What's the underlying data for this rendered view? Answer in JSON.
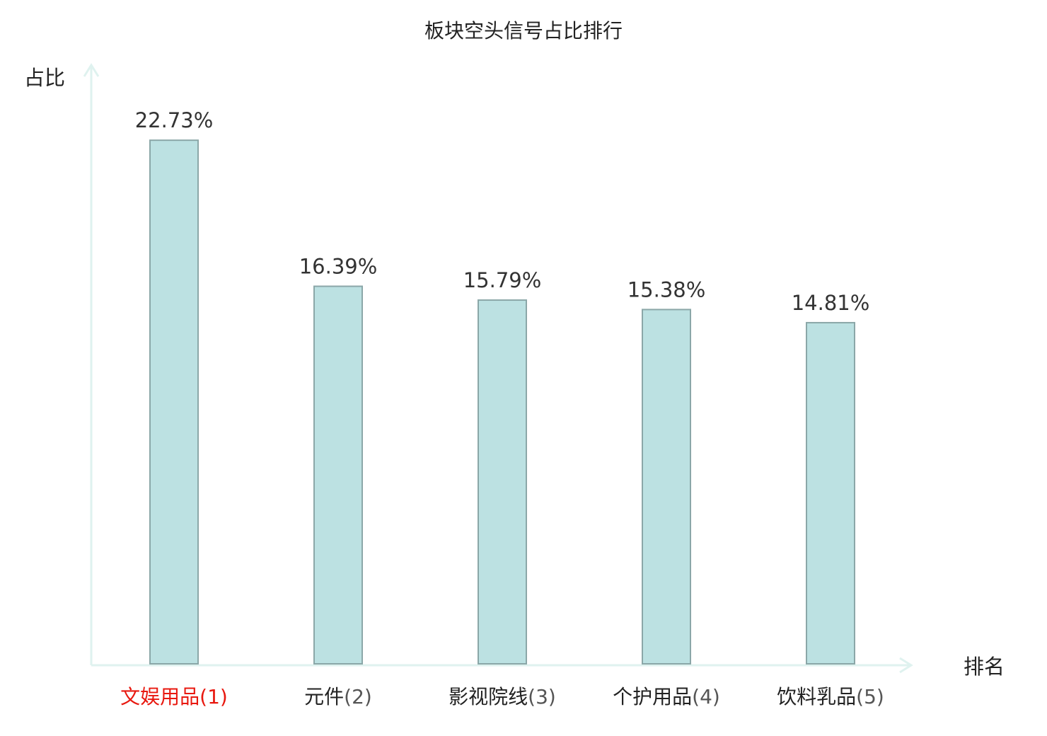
{
  "chart_data": {
    "type": "bar",
    "title": "板块空头信号占比排行",
    "xlabel": "排名",
    "ylabel": "占比",
    "categories": [
      "文娱用品",
      "元件",
      "影视院线",
      "个护用品",
      "饮料乳品"
    ],
    "ranks": [
      "(1)",
      "(2)",
      "(3)",
      "(4)",
      "(5)"
    ],
    "values": [
      22.73,
      16.39,
      15.79,
      15.38,
      14.81
    ],
    "value_labels": [
      "22.73%",
      "16.39%",
      "15.79%",
      "15.38%",
      "14.81%"
    ],
    "ylim": [
      0,
      25.5
    ],
    "grid": false,
    "legend": "none",
    "highlight_index": 0,
    "colors": {
      "bar_fill": "#bce1e2",
      "bar_stroke": "#8ba7a8",
      "axis": "#dff2ef",
      "highlight_text": "#e8180f"
    }
  }
}
